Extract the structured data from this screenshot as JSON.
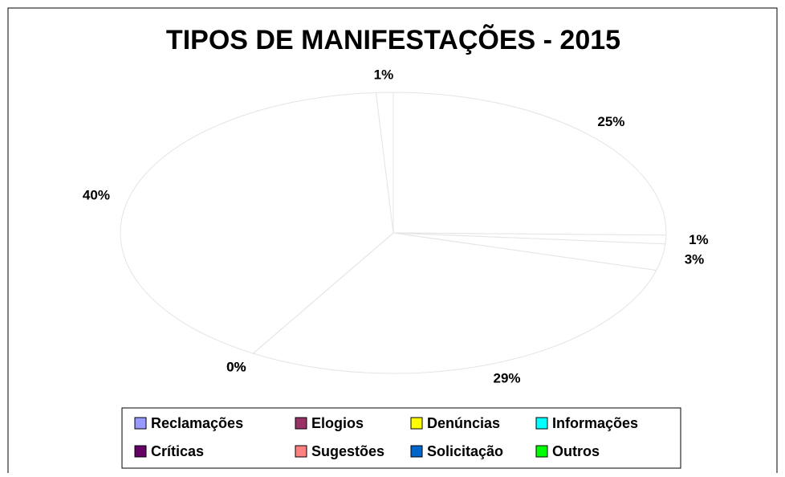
{
  "chart_data": {
    "type": "pie",
    "title": "TIPOS DE MANIFESTAÇÕES - 2015",
    "categories": [
      "Reclamações",
      "Elogios",
      "Denúncias",
      "Informações",
      "Críticas",
      "Sugestões",
      "Solicitação",
      "Outros"
    ],
    "values": [
      25,
      1,
      3,
      29,
      0,
      0,
      40,
      1
    ],
    "value_labels": [
      "25%",
      "1%",
      "3%",
      "29%",
      "0%",
      "0%",
      "40%",
      "1%"
    ],
    "colors": [
      "#9999ff",
      "#993366",
      "#ffff00",
      "#00ffff",
      "#660066",
      "#ff8080",
      "#0066cc",
      "#00ff00"
    ],
    "legend": "bottom"
  }
}
